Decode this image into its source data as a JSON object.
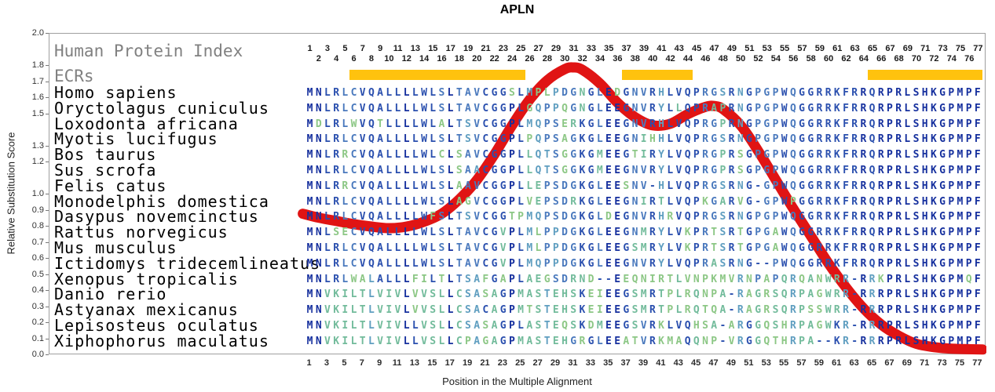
{
  "title": "APLN",
  "axes": {
    "y_label": "Relative Substitution Score",
    "x_label": "Position in the Multiple Alignment",
    "y_ticks": [
      "2.0",
      "1.8",
      "1.7",
      "1.6",
      "1.5",
      "1.3",
      "1.2",
      "1.0",
      "0.9",
      "0.8",
      "0.7",
      "0.6",
      "0.5",
      "0.4",
      "0.3",
      "0.2",
      "0.1",
      "0.0"
    ],
    "y_min": 0.0,
    "y_max": 2.0
  },
  "left_panel": {
    "index_label": "Human Protein Index",
    "ecrs_label": "ECRs"
  },
  "position_ruler": {
    "top_row_odd": [
      1,
      3,
      5,
      7,
      9,
      11,
      13,
      15,
      17,
      19,
      21,
      23,
      25,
      27,
      29,
      31,
      33,
      35,
      37,
      39,
      41,
      43,
      45,
      47,
      49,
      51,
      53,
      55,
      57,
      59,
      61,
      63,
      65,
      67,
      69,
      71,
      73,
      75,
      77
    ],
    "second_row_even": [
      2,
      4,
      6,
      8,
      10,
      12,
      14,
      16,
      18,
      20,
      22,
      24,
      26,
      28,
      30,
      32,
      34,
      36,
      38,
      40,
      42,
      44,
      46,
      48,
      50,
      52,
      54,
      56,
      58,
      60,
      62,
      64,
      66,
      68,
      70,
      72,
      74,
      76
    ],
    "bottom_axis_odd": [
      1,
      3,
      5,
      7,
      9,
      11,
      13,
      15,
      17,
      19,
      21,
      23,
      25,
      27,
      29,
      31,
      33,
      35,
      37,
      39,
      41,
      43,
      45,
      47,
      49,
      51,
      53,
      55,
      57,
      59,
      61,
      63,
      65,
      67,
      69,
      71,
      73,
      75,
      77
    ]
  },
  "chart_data": {
    "type": "line",
    "title": "APLN",
    "xlabel": "Position in the Multiple Alignment",
    "ylabel": "Relative Substitution Score",
    "ylim": [
      0.0,
      2.0
    ],
    "xlim": [
      1,
      77
    ],
    "alignment_length": 77,
    "substitution_curve": {
      "name": "Relative substitution score",
      "color": "#e01414",
      "points": [
        [
          0.2,
          0.88
        ],
        [
          2,
          0.855
        ],
        [
          4,
          0.835
        ],
        [
          6,
          0.815
        ],
        [
          8,
          0.8
        ],
        [
          10,
          0.79
        ],
        [
          12,
          0.8
        ],
        [
          14,
          0.83
        ],
        [
          16,
          0.88
        ],
        [
          18,
          0.97
        ],
        [
          20,
          1.09
        ],
        [
          22,
          1.25
        ],
        [
          24,
          1.43
        ],
        [
          26,
          1.59
        ],
        [
          28,
          1.71
        ],
        [
          30,
          1.78
        ],
        [
          31,
          1.79
        ],
        [
          32,
          1.775
        ],
        [
          34,
          1.69
        ],
        [
          36,
          1.57
        ],
        [
          38,
          1.48
        ],
        [
          40,
          1.43
        ],
        [
          42,
          1.44
        ],
        [
          44,
          1.5
        ],
        [
          46,
          1.545
        ],
        [
          47,
          1.55
        ],
        [
          48,
          1.53
        ],
        [
          50,
          1.43
        ],
        [
          52,
          1.27
        ],
        [
          54,
          1.09
        ],
        [
          56,
          0.91
        ],
        [
          58,
          0.74
        ],
        [
          60,
          0.57
        ],
        [
          62,
          0.42
        ],
        [
          64,
          0.29
        ],
        [
          66,
          0.19
        ],
        [
          68,
          0.12
        ],
        [
          70,
          0.07
        ],
        [
          72,
          0.05
        ],
        [
          74,
          0.04
        ],
        [
          77.5,
          0.035
        ]
      ]
    },
    "ecr_regions": [
      {
        "start": 6,
        "end": 25
      },
      {
        "start": 37,
        "end": 44
      },
      {
        "start": 65,
        "end": 77
      }
    ],
    "ecr_color": "#ffc20e",
    "conservation_palette": {
      "very_high": "#16309e",
      "high": "#2a4fae",
      "medium": "#4a79bd",
      "low": "#5f9ec0",
      "very_low": "#72bb9b",
      "minimal": "#8cc785"
    },
    "species": [
      {
        "name": "Homo sapiens",
        "sequence": "MNLRLCVQALLLLWLSLTAVCGGSLMPLPDGNGLEDGNVRHLVQPRGSRNGPGPWQGGRRKFRRQRPRLSHKGPMPF"
      },
      {
        "name": "Oryctolagus cuniculus",
        "sequence": "MNLRLCVQALLLLWLSLTAVCGGPLGQPPQGNGLEEGNVRYLLQPRAPRNGPGPWQGGRRKFRRQRPRLSHKGPMPF"
      },
      {
        "name": "Loxodonta africana",
        "sequence": "MDLRLWVQTLLLLWLALTSVCGGPLMQPSERKGLEEGNVRHLVQPRGPRNGPGPWQGGRRKFRRQRPRLSHKGPMPF"
      },
      {
        "name": "Myotis lucifugus",
        "sequence": "MNLRLCVQALLLLWLSLTSVCGGPLPQPSAGKGLEEGNIHHLVQPRGSRNGPGPWQGGRRKFRRQRPRLSHKGPMPF"
      },
      {
        "name": "Bos taurus",
        "sequence": "MNLRRCVQALLLLWLCLSAVCGGPLLQTSGGKGMEEGTIRYLVQPRGPRSGPGPWQGGRRKFRRQRPRLSHKGPMPF"
      },
      {
        "name": "Sus scrofa",
        "sequence": "MNLRLCVQALLLLWLSLSAACGGPLLQTSGGKGMEEGNVRYLVQPRGPRSGPGPWQGGRRKFRRQRPRLSHKGPMPF"
      },
      {
        "name": "Felis catus",
        "sequence": "MNLRRCVQALLLLWLSLAAVCGGPLLEPSDGKGLEESNV-HLVQPRGSRNG-GPWQGGRRKFRRQRPRLSHKGPMPF"
      },
      {
        "name": "Monodelphis domestica",
        "sequence": "MNLRLCVQALLLLWLSLAGVCGGPLVEPSDRKGLEEGNIRTLVQPKGARVG-GPWPGGRRKFRRQRPRLSHKGPMPF"
      },
      {
        "name": "Dasypus novemcinctus",
        "sequence": "MNLRLCVQALLLLWFSLTSVCGGTPMQPSDGKGLDEGNVRHRVQPRGSRNGPGPWQGGRRKFRRQRPRLSHKGPMPF"
      },
      {
        "name": "Rattus norvegicus",
        "sequence": "MNLSECVQALLLLWLSLTAVCGVPLMLPPDGKGLEEGNMRYLVKPRTSRTGPGAWQGGRRKFRRQRPRLSHKGPMPF"
      },
      {
        "name": "Mus musculus",
        "sequence": "MNLRLCVQALLLLWLSLTAVCGVPLMLPPDGKGLEEGSMRYLVKPRTSRTGPGAWQGGRRKFRRQRPRLSHKGPMPF"
      },
      {
        "name": "Ictidomys tridecemlineatus",
        "sequence": "MNLRLCVQALLLLWLSLTAVCGVPLMQPPDGKGLEEGNVRYLVQPRASRNG--PWQGGRRKFRRQRPRLSHKGPMPF"
      },
      {
        "name": "Xenopus tropicalis",
        "sequence": "MNLRLWALALLLFILTLTSAFGAPLAEGSDRND--EEQNIRTLVNPKMVRNPAPQRQANWRR-RRKPRLSHKGPMQF"
      },
      {
        "name": "Danio rerio",
        "sequence": "MNVKILTLVIVLVVSLLCSASAGPMASTEHSKEIEEGSMRTPLRQNPA-RAGRSQRPAGWRR-RRRPRLSHKGPMPF"
      },
      {
        "name": "Astyanax mexicanus",
        "sequence": "MNVKILTLVIVLVVSLLCSACAGPMTSTEHSKEIEEGSMRTPLRQTQA-RAGRSQRPSSWRR-RRRPRLSHKGPMPF"
      },
      {
        "name": "Lepisosteus oculatus",
        "sequence": "MNVKILTLVIVLLVSLLCSASAGPLASTEQSKDMEEGSVRKLVQHSA-ARGGQSHRPAGWKR-RRRPRLSHKGPMPF"
      },
      {
        "name": "Xiphophorus maculatus",
        "sequence": "MNVKILTLVIVLLVSLLCPAGAGPMASTEHGRGLEEATVRKMAQQNP-VRGGQTHRPA--KR-RRRPRLSHKGPMPF"
      }
    ]
  }
}
